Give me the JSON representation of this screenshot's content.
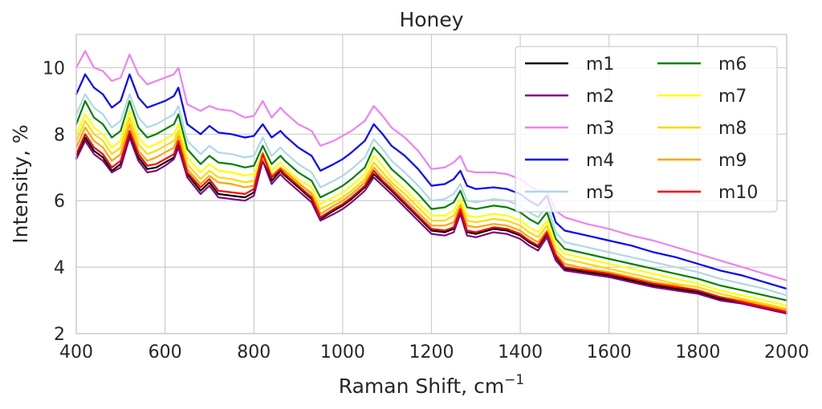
{
  "chart_data": {
    "type": "line",
    "title": "Honey",
    "xlabel": "Raman Shift, cm",
    "xlabel_superscript": "−1",
    "ylabel": "Intensity, %",
    "xlim": [
      400,
      2000
    ],
    "ylim": [
      2,
      11
    ],
    "xticks": [
      400,
      600,
      800,
      1000,
      1200,
      1400,
      1600,
      1800,
      2000
    ],
    "yticks": [
      2,
      4,
      6,
      8,
      10
    ],
    "grid": true,
    "legend": {
      "placement": "top-right",
      "columns": 2
    },
    "x": [
      400,
      420,
      440,
      460,
      480,
      500,
      520,
      540,
      560,
      580,
      600,
      620,
      630,
      650,
      680,
      700,
      720,
      750,
      780,
      800,
      820,
      840,
      860,
      870,
      900,
      930,
      950,
      980,
      1000,
      1020,
      1050,
      1070,
      1090,
      1110,
      1140,
      1170,
      1200,
      1230,
      1250,
      1265,
      1280,
      1300,
      1340,
      1370,
      1400,
      1420,
      1440,
      1460,
      1480,
      1500,
      1550,
      1600,
      1650,
      1700,
      1750,
      1800,
      1850,
      1900,
      1950,
      2000
    ],
    "series": [
      {
        "name": "m1",
        "color": "#000000",
        "values": [
          7.3,
          7.9,
          7.5,
          7.3,
          6.9,
          7.1,
          8.0,
          7.3,
          6.95,
          7.0,
          7.15,
          7.3,
          7.7,
          6.8,
          6.3,
          6.55,
          6.2,
          6.15,
          6.1,
          6.25,
          7.3,
          6.6,
          6.9,
          6.75,
          6.4,
          6.05,
          5.45,
          5.7,
          5.85,
          6.05,
          6.4,
          6.8,
          6.55,
          6.3,
          5.9,
          5.5,
          5.1,
          5.05,
          5.15,
          5.7,
          5.05,
          5.0,
          5.15,
          5.1,
          4.95,
          4.75,
          4.6,
          5.0,
          4.3,
          3.95,
          3.85,
          3.75,
          3.6,
          3.45,
          3.35,
          3.25,
          3.05,
          2.95,
          2.8,
          2.65
        ]
      },
      {
        "name": "m2",
        "color": "#800080",
        "values": [
          7.25,
          7.8,
          7.4,
          7.2,
          6.85,
          7.0,
          7.9,
          7.2,
          6.85,
          6.9,
          7.05,
          7.25,
          7.6,
          6.7,
          6.2,
          6.45,
          6.1,
          6.05,
          6.0,
          6.15,
          7.2,
          6.5,
          6.8,
          6.65,
          6.3,
          5.95,
          5.4,
          5.6,
          5.75,
          5.95,
          6.3,
          6.7,
          6.45,
          6.2,
          5.8,
          5.4,
          5.0,
          4.95,
          5.05,
          5.6,
          4.95,
          4.9,
          5.05,
          5.0,
          4.85,
          4.65,
          4.5,
          4.9,
          4.2,
          3.9,
          3.8,
          3.7,
          3.55,
          3.4,
          3.3,
          3.2,
          3.0,
          2.9,
          2.75,
          2.6
        ]
      },
      {
        "name": "m3",
        "color": "#ee82ee",
        "values": [
          10.0,
          10.5,
          10.0,
          9.9,
          9.6,
          9.7,
          10.4,
          9.8,
          9.5,
          9.6,
          9.7,
          9.8,
          10.0,
          8.9,
          8.7,
          8.85,
          8.75,
          8.7,
          8.5,
          8.55,
          9.0,
          8.5,
          8.8,
          8.65,
          8.3,
          8.1,
          7.65,
          7.8,
          7.95,
          8.1,
          8.4,
          8.85,
          8.55,
          8.2,
          7.9,
          7.5,
          6.95,
          7.0,
          7.15,
          7.35,
          6.9,
          6.85,
          6.85,
          6.8,
          6.65,
          6.45,
          6.3,
          6.3,
          5.7,
          5.5,
          5.3,
          5.15,
          4.95,
          4.8,
          4.6,
          4.4,
          4.2,
          4.0,
          3.8,
          3.6
        ]
      },
      {
        "name": "m4",
        "color": "#0000ff",
        "values": [
          9.2,
          9.8,
          9.4,
          9.2,
          8.8,
          9.0,
          9.8,
          9.1,
          8.8,
          8.9,
          9.0,
          9.15,
          9.4,
          8.3,
          8.0,
          8.25,
          8.05,
          8.0,
          7.9,
          7.95,
          8.3,
          7.9,
          8.1,
          7.95,
          7.6,
          7.35,
          6.9,
          7.1,
          7.25,
          7.45,
          7.8,
          8.3,
          8.0,
          7.65,
          7.35,
          6.95,
          6.45,
          6.5,
          6.65,
          6.9,
          6.45,
          6.35,
          6.4,
          6.35,
          6.2,
          6.0,
          5.85,
          6.15,
          5.35,
          5.1,
          4.95,
          4.8,
          4.65,
          4.45,
          4.3,
          4.1,
          3.9,
          3.75,
          3.55,
          3.35
        ]
      },
      {
        "name": "m5",
        "color": "#add8e6",
        "values": [
          8.6,
          9.2,
          8.8,
          8.6,
          8.2,
          8.4,
          9.2,
          8.5,
          8.2,
          8.3,
          8.45,
          8.6,
          8.85,
          7.8,
          7.4,
          7.65,
          7.45,
          7.4,
          7.3,
          7.35,
          7.9,
          7.35,
          7.6,
          7.45,
          7.1,
          6.85,
          6.4,
          6.6,
          6.75,
          6.95,
          7.3,
          7.85,
          7.55,
          7.2,
          6.85,
          6.45,
          6.0,
          6.05,
          6.2,
          6.5,
          6.0,
          5.95,
          6.05,
          6.0,
          5.85,
          5.65,
          5.5,
          5.85,
          5.05,
          4.75,
          4.6,
          4.45,
          4.3,
          4.15,
          4.0,
          3.85,
          3.65,
          3.5,
          3.35,
          3.15
        ]
      },
      {
        "name": "m6",
        "color": "#008000",
        "values": [
          8.3,
          9.0,
          8.5,
          8.3,
          7.9,
          8.1,
          9.0,
          8.2,
          7.9,
          8.0,
          8.15,
          8.3,
          8.6,
          7.55,
          7.1,
          7.35,
          7.15,
          7.1,
          7.0,
          7.05,
          7.65,
          7.1,
          7.35,
          7.2,
          6.85,
          6.6,
          6.1,
          6.3,
          6.45,
          6.65,
          7.0,
          7.6,
          7.3,
          6.95,
          6.6,
          6.2,
          5.75,
          5.8,
          5.95,
          6.3,
          5.8,
          5.75,
          5.85,
          5.8,
          5.65,
          5.45,
          5.3,
          5.65,
          4.85,
          4.55,
          4.4,
          4.25,
          4.1,
          3.95,
          3.8,
          3.65,
          3.45,
          3.3,
          3.15,
          3.0
        ]
      },
      {
        "name": "m7",
        "color": "#ffff00",
        "values": [
          8.0,
          8.6,
          8.2,
          8.0,
          7.6,
          7.8,
          8.7,
          7.9,
          7.6,
          7.7,
          7.85,
          8.0,
          8.3,
          7.3,
          6.85,
          7.1,
          6.9,
          6.85,
          6.75,
          6.8,
          7.45,
          6.9,
          7.15,
          7.0,
          6.65,
          6.4,
          5.9,
          6.1,
          6.25,
          6.45,
          6.8,
          7.35,
          7.05,
          6.7,
          6.35,
          5.95,
          5.55,
          5.55,
          5.7,
          6.05,
          5.55,
          5.5,
          5.6,
          5.55,
          5.4,
          5.2,
          5.05,
          5.4,
          4.65,
          4.4,
          4.25,
          4.1,
          3.95,
          3.8,
          3.65,
          3.5,
          3.3,
          3.15,
          3.0,
          2.85
        ]
      },
      {
        "name": "m8",
        "color": "#ffd700",
        "values": [
          7.8,
          8.4,
          8.0,
          7.8,
          7.4,
          7.6,
          8.5,
          7.7,
          7.4,
          7.5,
          7.65,
          7.8,
          8.1,
          7.1,
          6.65,
          6.9,
          6.7,
          6.65,
          6.55,
          6.6,
          7.3,
          6.75,
          7.0,
          6.85,
          6.5,
          6.25,
          5.75,
          5.95,
          6.1,
          6.3,
          6.65,
          7.15,
          6.85,
          6.55,
          6.2,
          5.8,
          5.4,
          5.4,
          5.55,
          5.9,
          5.4,
          5.35,
          5.45,
          5.4,
          5.25,
          5.05,
          4.9,
          5.25,
          4.5,
          4.25,
          4.1,
          3.95,
          3.8,
          3.65,
          3.5,
          3.4,
          3.2,
          3.05,
          2.9,
          2.75
        ]
      },
      {
        "name": "m9",
        "color": "#ffa500",
        "values": [
          7.6,
          8.2,
          7.8,
          7.6,
          7.2,
          7.4,
          8.3,
          7.5,
          7.2,
          7.3,
          7.45,
          7.6,
          7.95,
          6.95,
          6.5,
          6.75,
          6.55,
          6.5,
          6.4,
          6.45,
          7.45,
          6.75,
          7.0,
          6.9,
          6.55,
          6.2,
          5.6,
          5.85,
          6.0,
          6.2,
          6.55,
          7.0,
          6.7,
          6.45,
          6.05,
          5.65,
          5.25,
          5.25,
          5.35,
          5.85,
          5.25,
          5.2,
          5.3,
          5.25,
          5.1,
          4.9,
          4.75,
          5.1,
          4.4,
          4.1,
          3.95,
          3.85,
          3.7,
          3.55,
          3.45,
          3.3,
          3.1,
          3.0,
          2.85,
          2.7
        ]
      },
      {
        "name": "m10",
        "color": "#ff0000",
        "values": [
          7.4,
          8.0,
          7.6,
          7.4,
          7.0,
          7.2,
          8.1,
          7.4,
          7.05,
          7.1,
          7.25,
          7.4,
          7.8,
          6.85,
          6.4,
          6.65,
          6.3,
          6.25,
          6.2,
          6.35,
          7.4,
          6.7,
          6.95,
          6.8,
          6.45,
          6.1,
          5.5,
          5.75,
          5.9,
          6.1,
          6.45,
          6.9,
          6.6,
          6.35,
          5.95,
          5.55,
          5.15,
          5.1,
          5.2,
          5.75,
          5.1,
          5.05,
          5.2,
          5.15,
          5.0,
          4.8,
          4.65,
          5.05,
          4.35,
          4.0,
          3.9,
          3.8,
          3.65,
          3.5,
          3.4,
          3.3,
          3.1,
          2.95,
          2.8,
          2.65
        ]
      }
    ]
  }
}
